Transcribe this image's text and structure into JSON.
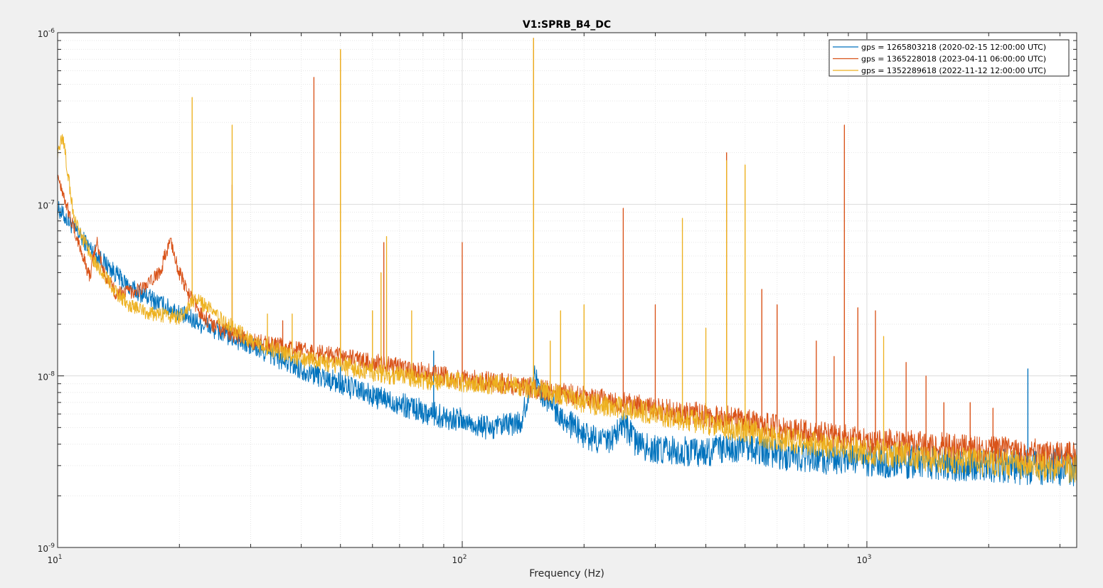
{
  "chart_data": {
    "type": "line",
    "title": "V1:SPRB_B4_DC",
    "xlabel": "Frequency (Hz)",
    "ylabel": "",
    "xscale": "log",
    "yscale": "log",
    "xlim": [
      10,
      3300
    ],
    "ylim": [
      1e-09,
      1e-06
    ],
    "grid": true,
    "legend_position": "top-right",
    "x_ticks": [
      {
        "value": 10,
        "base": "10",
        "exp": "1"
      },
      {
        "value": 100,
        "base": "10",
        "exp": "2"
      },
      {
        "value": 1000,
        "base": "10",
        "exp": "3"
      }
    ],
    "y_ticks": [
      {
        "value": 1e-09,
        "base": "10",
        "exp": "-9"
      },
      {
        "value": 1e-08,
        "base": "10",
        "exp": "-8"
      },
      {
        "value": 1e-07,
        "base": "10",
        "exp": "-7"
      },
      {
        "value": 1e-06,
        "base": "10",
        "exp": "-6"
      }
    ],
    "series": [
      {
        "name": "gps = 1265803218 (2020-02-15 12:00:00 UTC)",
        "color": "#0072bd",
        "noise": 0.05,
        "baseline": [
          [
            10,
            9.5e-08
          ],
          [
            12,
            5.6e-08
          ],
          [
            15,
            3.3e-08
          ],
          [
            20,
            2.3e-08
          ],
          [
            30,
            1.5e-08
          ],
          [
            40,
            1.1e-08
          ],
          [
            50,
            9e-09
          ],
          [
            60,
            7.6e-09
          ],
          [
            70,
            6.9e-09
          ],
          [
            80,
            6.2e-09
          ],
          [
            90,
            5.8e-09
          ],
          [
            100,
            5.5e-09
          ],
          [
            110,
            5.1e-09
          ],
          [
            120,
            4.9e-09
          ],
          [
            140,
            5.4e-09
          ],
          [
            150,
            1e-08
          ],
          [
            160,
            7.5e-09
          ],
          [
            170,
            6.5e-09
          ],
          [
            180,
            5.5e-09
          ],
          [
            200,
            4.5e-09
          ],
          [
            230,
            4.1e-09
          ],
          [
            250,
            5.3e-09
          ],
          [
            270,
            4e-09
          ],
          [
            300,
            3.7e-09
          ],
          [
            400,
            3.6e-09
          ],
          [
            500,
            3.9e-09
          ],
          [
            600,
            3.5e-09
          ],
          [
            800,
            3.3e-09
          ],
          [
            1000,
            3.2e-09
          ],
          [
            1500,
            3.1e-09
          ],
          [
            2000,
            3e-09
          ],
          [
            3300,
            2.9e-09
          ]
        ],
        "peaks": [
          [
            50,
            2.5e-08
          ],
          [
            85,
            1.4e-08
          ],
          [
            150,
            1.9e-08
          ],
          [
            175,
            6.5e-09
          ],
          [
            250,
            5.3e-09
          ],
          [
            2500,
            1.1e-08
          ]
        ]
      },
      {
        "name": "gps = 1365228018 (2023-04-11 06:00:00 UTC)",
        "color": "#d95319",
        "noise": 0.04,
        "baseline": [
          [
            10,
            1.5e-07
          ],
          [
            11,
            7e-08
          ],
          [
            12,
            3.8e-08
          ],
          [
            12.5,
            6e-08
          ],
          [
            13,
            4e-08
          ],
          [
            14,
            3e-08
          ],
          [
            16,
            3.2e-08
          ],
          [
            17,
            3.5e-08
          ],
          [
            18,
            4.2e-08
          ],
          [
            19,
            6.2e-08
          ],
          [
            20,
            4e-08
          ],
          [
            21,
            3e-08
          ],
          [
            23,
            2.2e-08
          ],
          [
            25,
            1.9e-08
          ],
          [
            28,
            1.7e-08
          ],
          [
            30,
            1.6e-08
          ],
          [
            35,
            1.5e-08
          ],
          [
            40,
            1.4e-08
          ],
          [
            50,
            1.3e-08
          ],
          [
            60,
            1.2e-08
          ],
          [
            80,
            1.05e-08
          ],
          [
            100,
            9.6e-09
          ],
          [
            120,
            9.2e-09
          ],
          [
            150,
            8.5e-09
          ],
          [
            200,
            7.5e-09
          ],
          [
            300,
            6.5e-09
          ],
          [
            500,
            5.5e-09
          ],
          [
            700,
            4.7e-09
          ],
          [
            1000,
            4.2e-09
          ],
          [
            1500,
            3.9e-09
          ],
          [
            2000,
            3.7e-09
          ],
          [
            3300,
            3.4e-09
          ]
        ],
        "peaks": [
          [
            27,
            1.3e-07
          ],
          [
            36,
            2.1e-08
          ],
          [
            43,
            5.5e-07
          ],
          [
            50,
            7.9e-07
          ],
          [
            64,
            6e-08
          ],
          [
            100,
            6e-08
          ],
          [
            150,
            9.3e-07
          ],
          [
            250,
            9.5e-08
          ],
          [
            300,
            2.6e-08
          ],
          [
            450,
            2e-07
          ],
          [
            550,
            3.2e-08
          ],
          [
            600,
            2.6e-08
          ],
          [
            750,
            1.6e-08
          ],
          [
            830,
            1.3e-08
          ],
          [
            880,
            2.9e-07
          ],
          [
            950,
            2.5e-08
          ],
          [
            1050,
            2.4e-08
          ],
          [
            1250,
            1.2e-08
          ],
          [
            1400,
            1e-08
          ],
          [
            1550,
            7e-09
          ],
          [
            1800,
            7e-09
          ],
          [
            2050,
            6.5e-09
          ]
        ]
      },
      {
        "name": "gps = 1352289618 (2022-11-12 12:00:00 UTC)",
        "color": "#edb120",
        "noise": 0.04,
        "baseline": [
          [
            10,
            2e-07
          ],
          [
            10.3,
            2.5e-07
          ],
          [
            11,
            8e-08
          ],
          [
            12,
            5.2e-08
          ],
          [
            14,
            3e-08
          ],
          [
            15,
            2.6e-08
          ],
          [
            17,
            2.3e-08
          ],
          [
            20,
            2.2e-08
          ],
          [
            22,
            2.8e-08
          ],
          [
            25,
            2.2e-08
          ],
          [
            30,
            1.6e-08
          ],
          [
            35,
            1.4e-08
          ],
          [
            40,
            1.25e-08
          ],
          [
            50,
            1.15e-08
          ],
          [
            60,
            1.05e-08
          ],
          [
            80,
            9.5e-09
          ],
          [
            100,
            9.2e-09
          ],
          [
            150,
            8.5e-09
          ],
          [
            200,
            7e-09
          ],
          [
            300,
            6e-09
          ],
          [
            400,
            5.3e-09
          ],
          [
            500,
            4.8e-09
          ],
          [
            600,
            4.3e-09
          ],
          [
            800,
            3.9e-09
          ],
          [
            1000,
            3.6e-09
          ],
          [
            1500,
            3.3e-09
          ],
          [
            2000,
            3.1e-09
          ],
          [
            3300,
            2.9e-09
          ]
        ],
        "peaks": [
          [
            21.5,
            4.2e-07
          ],
          [
            27,
            2.9e-07
          ],
          [
            33,
            2.3e-08
          ],
          [
            38,
            2.3e-08
          ],
          [
            50,
            8e-07
          ],
          [
            60,
            2.4e-08
          ],
          [
            63,
            4e-08
          ],
          [
            65,
            6.5e-08
          ],
          [
            75,
            2.4e-08
          ],
          [
            150,
            9.3e-07
          ],
          [
            165,
            1.6e-08
          ],
          [
            175,
            2.4e-08
          ],
          [
            200,
            2.6e-08
          ],
          [
            350,
            8.3e-08
          ],
          [
            400,
            1.9e-08
          ],
          [
            450,
            1.8e-07
          ],
          [
            500,
            1.7e-07
          ],
          [
            1100,
            1.7e-08
          ]
        ]
      }
    ]
  }
}
